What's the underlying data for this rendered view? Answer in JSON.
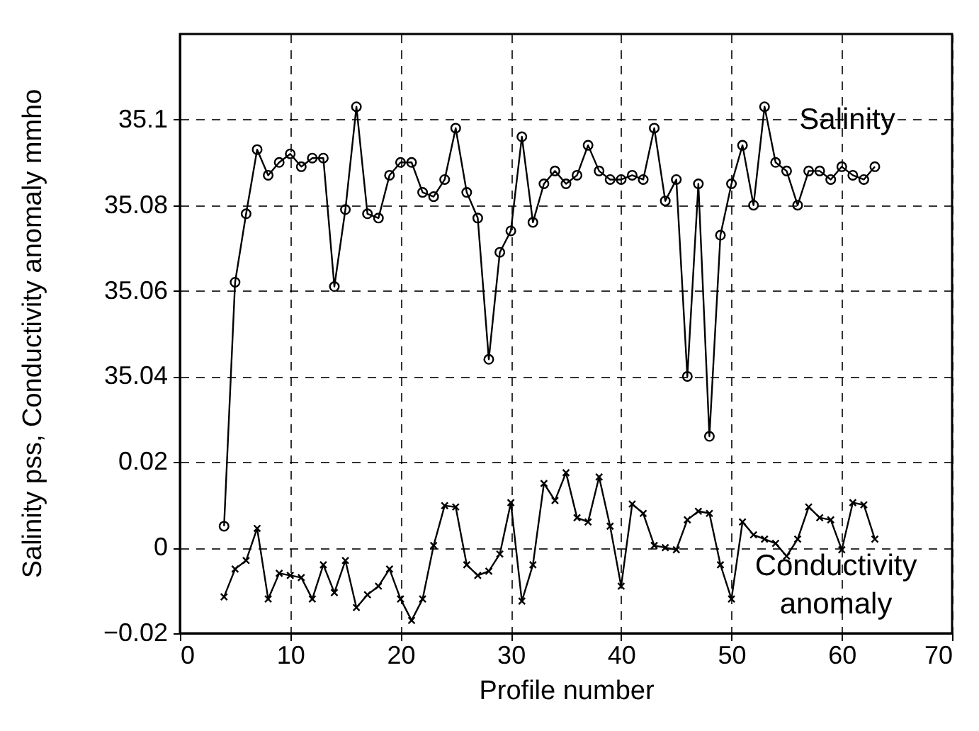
{
  "chart_data": {
    "type": "line",
    "xlabel": "Profile number",
    "ylabel": "Salinity pss, Conductivity anomaly mmho",
    "x": [
      4,
      5,
      6,
      7,
      8,
      9,
      10,
      11,
      12,
      13,
      14,
      15,
      16,
      17,
      18,
      19,
      20,
      21,
      22,
      23,
      24,
      25,
      26,
      27,
      28,
      29,
      30,
      31,
      32,
      33,
      34,
      35,
      36,
      37,
      38,
      39,
      40,
      41,
      42,
      43,
      44,
      45,
      46,
      47,
      48,
      49,
      50,
      51,
      52,
      53,
      54,
      55,
      56,
      57,
      58,
      59,
      60,
      61,
      62,
      63
    ],
    "series": [
      {
        "name": "Salinity",
        "color": "#000000",
        "axis": "y2",
        "marker": "circle",
        "values": [
          35.005,
          35.062,
          35.078,
          35.093,
          35.087,
          35.09,
          35.092,
          35.089,
          35.091,
          35.091,
          35.061,
          35.079,
          35.103,
          35.078,
          35.077,
          35.087,
          35.09,
          35.09,
          35.083,
          35.082,
          35.086,
          35.098,
          35.083,
          35.077,
          35.044,
          35.069,
          35.074,
          35.096,
          35.076,
          35.085,
          35.088,
          35.085,
          35.087,
          35.094,
          35.088,
          35.086,
          35.086,
          35.087,
          35.086,
          35.098,
          35.081,
          35.086,
          35.04,
          35.085,
          35.026,
          35.073,
          35.085,
          35.094,
          35.08,
          35.103,
          35.09,
          35.088,
          35.08,
          35.088,
          35.088,
          35.086,
          35.089,
          35.087,
          35.086,
          35.089
        ]
      },
      {
        "name": "Conductivity anomaly",
        "color": "#000000",
        "marker": "cross",
        "values": [
          -0.0115,
          -0.005,
          -0.003,
          0.0045,
          -0.012,
          -0.006,
          -0.0065,
          -0.007,
          -0.012,
          -0.004,
          -0.0105,
          -0.003,
          -0.014,
          -0.011,
          -0.009,
          -0.005,
          -0.012,
          -0.017,
          -0.012,
          0.0005,
          0.0098,
          0.0095,
          -0.004,
          -0.0065,
          -0.0055,
          -0.0015,
          0.0105,
          -0.0125,
          -0.004,
          0.015,
          0.011,
          0.0175,
          0.007,
          0.006,
          0.0165,
          0.005,
          -0.009,
          0.0102,
          0.008,
          0.0005,
          0,
          -0.0005,
          0.0065,
          0.0085,
          0.008,
          -0.004,
          -0.012,
          0.006,
          0.003,
          0.002,
          0.001,
          -0.002,
          0.002,
          0.0095,
          0.007,
          0.0065,
          -0.0005,
          0.0105,
          0.01,
          0.002
        ]
      }
    ],
    "xlim": [
      0,
      70
    ],
    "xticks": [
      0,
      10,
      20,
      30,
      40,
      50,
      60,
      70
    ],
    "ylim": [
      -0.02,
      0.12
    ],
    "yticks": [
      -0.02,
      0,
      0.02
    ],
    "y2lim": [
      34.98,
      35.12
    ],
    "y2ticks": [
      35.04,
      35.06,
      35.08,
      35.1
    ],
    "grid": true,
    "line_style": "solid"
  }
}
